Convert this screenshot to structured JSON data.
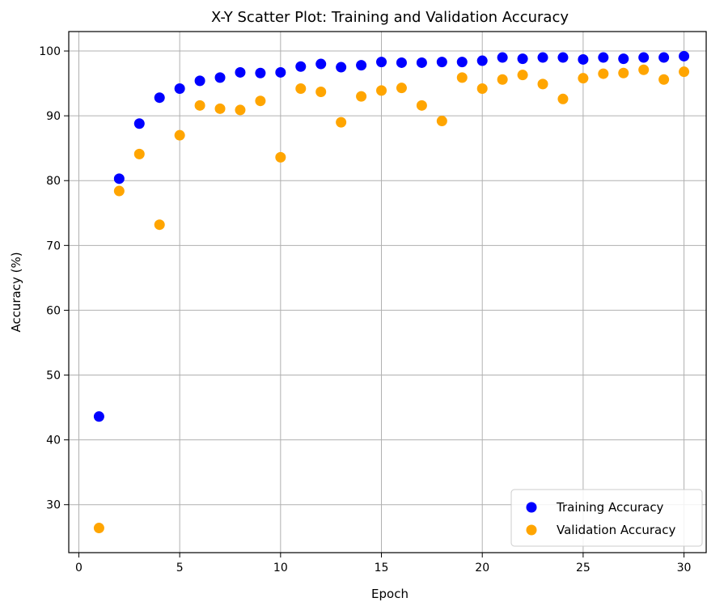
{
  "chart_data": {
    "type": "scatter",
    "title": "X-Y Scatter Plot: Training and Validation Accuracy",
    "xlabel": "Epoch",
    "ylabel": "Accuracy (%)",
    "xlim": [
      -0.5,
      31.1
    ],
    "ylim": [
      22.6,
      103
    ],
    "xticks": [
      0,
      5,
      10,
      15,
      20,
      25,
      30
    ],
    "yticks": [
      30,
      40,
      50,
      60,
      70,
      80,
      90,
      100
    ],
    "grid": true,
    "legend_position": "bottom-right",
    "series": [
      {
        "name": "Training Accuracy",
        "color": "#0000ff",
        "x": [
          1,
          2,
          3,
          4,
          5,
          6,
          7,
          8,
          9,
          10,
          11,
          12,
          13,
          14,
          15,
          16,
          17,
          18,
          19,
          20,
          21,
          22,
          23,
          24,
          25,
          26,
          27,
          28,
          29,
          30
        ],
        "y": [
          43.6,
          80.3,
          88.8,
          92.8,
          94.2,
          95.4,
          95.9,
          96.7,
          96.6,
          96.7,
          97.6,
          98.0,
          97.5,
          97.8,
          98.3,
          98.2,
          98.2,
          98.3,
          98.3,
          98.5,
          99.0,
          98.8,
          99.0,
          99.0,
          98.7,
          99.0,
          98.8,
          99.0,
          99.0,
          99.2
        ]
      },
      {
        "name": "Validation Accuracy",
        "color": "#ffa500",
        "x": [
          1,
          2,
          3,
          4,
          5,
          6,
          7,
          8,
          9,
          10,
          11,
          12,
          13,
          14,
          15,
          16,
          17,
          18,
          19,
          20,
          21,
          22,
          23,
          24,
          25,
          26,
          27,
          28,
          29,
          30
        ],
        "y": [
          26.4,
          78.4,
          84.1,
          73.2,
          87.0,
          91.6,
          91.1,
          90.9,
          92.3,
          83.6,
          94.2,
          93.7,
          89.0,
          93.0,
          93.9,
          94.3,
          91.6,
          89.2,
          95.9,
          94.2,
          95.6,
          96.3,
          94.9,
          92.6,
          95.8,
          96.5,
          96.6,
          97.1,
          95.6,
          96.8
        ]
      }
    ]
  }
}
